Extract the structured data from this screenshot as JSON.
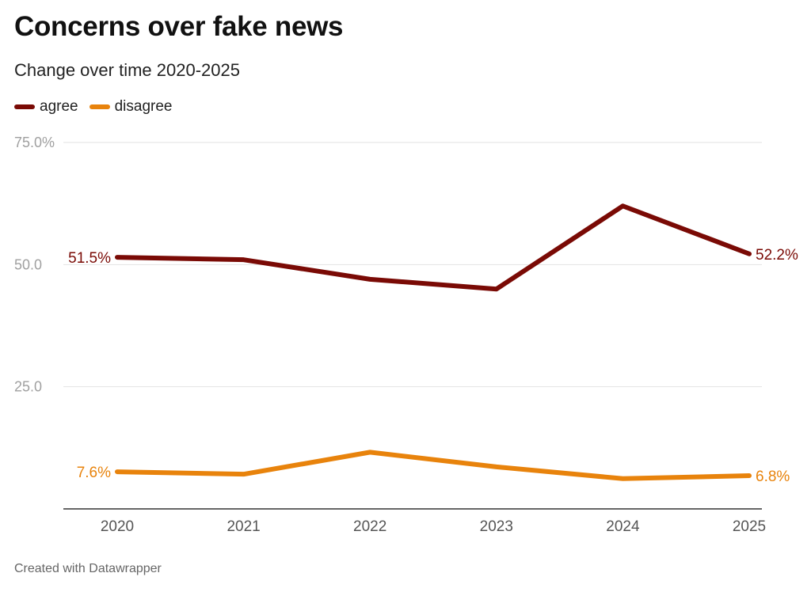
{
  "chart_data": {
    "type": "line",
    "title": "Concerns over fake news",
    "subtitle": "Change over time 2020-2025",
    "footer": "Created with Datawrapper",
    "x": [
      "2020",
      "2021",
      "2022",
      "2023",
      "2024",
      "2025"
    ],
    "ylim": [
      0,
      75
    ],
    "yticks": [
      {
        "value": 75,
        "label": "75.0%"
      },
      {
        "value": 50,
        "label": "50.0"
      },
      {
        "value": 25,
        "label": "25.0"
      }
    ],
    "grid": true,
    "legend_position": "top-left",
    "series": [
      {
        "name": "agree",
        "color": "#7a0a05",
        "values": [
          51.5,
          51.0,
          47.0,
          45.0,
          62.0,
          52.2
        ],
        "first_label": "51.5%",
        "last_label": "52.2%"
      },
      {
        "name": "disagree",
        "color": "#e8830c",
        "values": [
          7.6,
          7.1,
          11.6,
          8.6,
          6.2,
          6.8
        ],
        "first_label": "7.6%",
        "last_label": "6.8%"
      }
    ]
  }
}
